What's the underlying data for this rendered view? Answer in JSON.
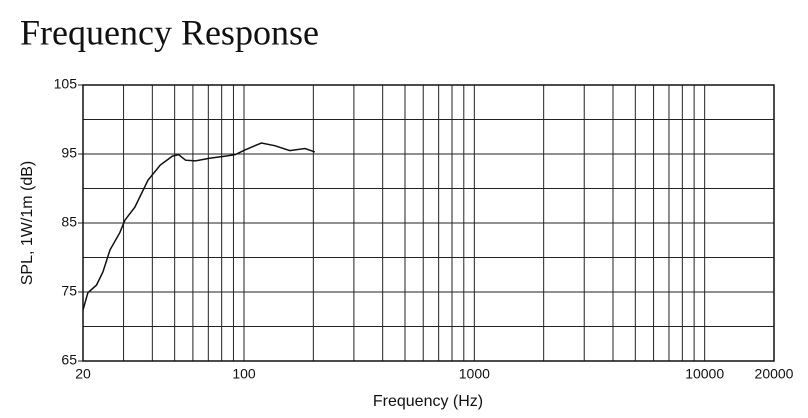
{
  "chart_data": {
    "type": "line",
    "title": "Frequency Response",
    "x_label": "Frequency (Hz)",
    "y_label": "SPL, 1W/1m (dB)",
    "x_scale": "log",
    "grid": true,
    "xlim": [
      20,
      20000
    ],
    "ylim": [
      65,
      105
    ],
    "xticks": [
      20,
      100,
      1000,
      10000,
      20000
    ],
    "xminorticks": [
      30,
      40,
      50,
      60,
      70,
      80,
      90,
      200,
      300,
      400,
      500,
      600,
      700,
      800,
      900,
      2000,
      3000,
      4000,
      5000,
      6000,
      7000,
      8000,
      9000
    ],
    "yticks": [
      65,
      75,
      85,
      95,
      105
    ],
    "yminorticks": [
      70,
      80,
      90,
      100
    ],
    "series": [
      {
        "name": "SPL",
        "color": "#111111",
        "x": [
          20,
          21,
          22.9,
          24.4,
          26.2,
          28.9,
          30.4,
          33.6,
          38.3,
          43.3,
          48.9,
          52,
          55.8,
          61.6,
          71.4,
          83,
          91.6,
          101,
          119,
          136,
          158,
          184,
          203
        ],
        "values": [
          72.4,
          74.9,
          76.0,
          77.9,
          81.1,
          83.6,
          85.4,
          87.3,
          91.2,
          93.4,
          94.7,
          94.9,
          94.1,
          94.0,
          94.4,
          94.7,
          94.9,
          95.6,
          96.6,
          96.2,
          95.5,
          95.8,
          95.3
        ]
      }
    ]
  }
}
